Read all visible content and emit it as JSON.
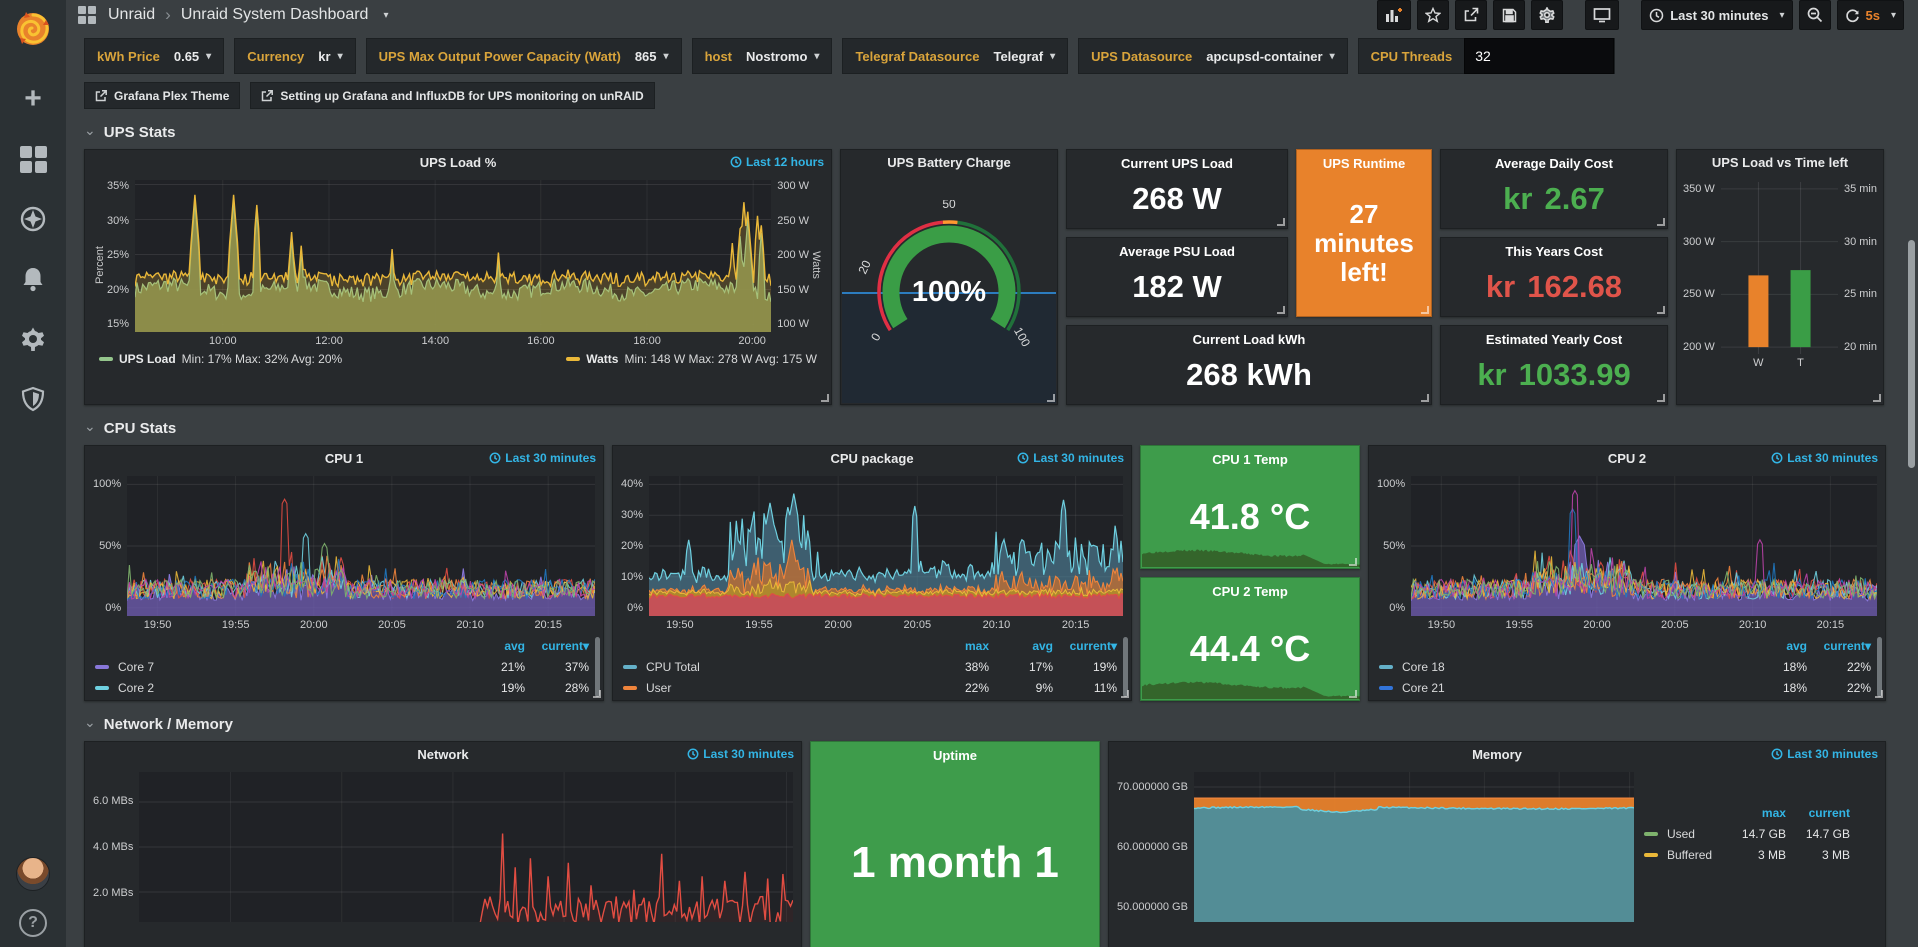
{
  "nav": {
    "breadcrumb": {
      "root": "Unraid",
      "current": "Unraid System Dashboard"
    },
    "time_range": "Last 30 minutes",
    "refresh": "5s"
  },
  "variables": [
    {
      "label": "kWh Price",
      "value": "0.65"
    },
    {
      "label": "Currency",
      "value": "kr"
    },
    {
      "label": "UPS Max Output Power Capacity (Watt)",
      "value": "865"
    },
    {
      "label": "host",
      "value": "Nostromo"
    },
    {
      "label": "Telegraf Datasource",
      "value": "Telegraf"
    },
    {
      "label": "UPS Datasource",
      "value": "apcupsd-container"
    },
    {
      "label": "CPU Threads",
      "value": "32"
    }
  ],
  "links": [
    {
      "text": "Grafana Plex Theme"
    },
    {
      "text": "Setting up Grafana and InfluxDB for UPS monitoring on unRAID"
    }
  ],
  "sections": {
    "ups": "UPS Stats",
    "cpu": "CPU Stats",
    "netmem": "Network / Memory"
  },
  "stats": {
    "current_ups_load": {
      "title": "Current UPS Load",
      "value": "268 W"
    },
    "avg_psu_load": {
      "title": "Average PSU Load",
      "value": "182 W"
    },
    "ups_runtime": {
      "title": "UPS Runtime",
      "value": "27 minutes left!",
      "bg": "#e8822b"
    },
    "current_load_kwh": {
      "title": "Current Load kWh",
      "value": "268 kWh"
    },
    "avg_daily_cost": {
      "title": "Average Daily Cost",
      "prefix": "kr",
      "value": "2.67",
      "color": "#4caf50"
    },
    "this_years_cost": {
      "title": "This Years Cost",
      "prefix": "kr",
      "value": "162.68",
      "color": "#e0544a"
    },
    "est_yearly_cost": {
      "title": "Estimated Yearly Cost",
      "prefix": "kr",
      "value": "1033.99",
      "color": "#4caf50"
    },
    "cpu1_temp": {
      "title": "CPU 1 Temp",
      "value": "41.8 °C",
      "bg": "#3e9c4b"
    },
    "cpu2_temp": {
      "title": "CPU 2 Temp",
      "value": "44.4 °C",
      "bg": "#3e9c4b"
    },
    "uptime": {
      "title": "Uptime",
      "value": "1 month 1",
      "bg": "#3e9c4b"
    }
  },
  "chart_data": [
    {
      "id": "ups_load",
      "type": "line",
      "title": "UPS Load %",
      "time_range": "Last 12 hours",
      "ylabel_left": "Percent",
      "ylabel_right": "Watts",
      "y_ticks_left": [
        "35%",
        "30%",
        "25%",
        "20%",
        "15%"
      ],
      "y_ticks_right": [
        "300 W",
        "250 W",
        "200 W",
        "150 W",
        "100 W"
      ],
      "x_ticks": [
        "10:00",
        "12:00",
        "14:00",
        "16:00",
        "18:00",
        "20:00"
      ],
      "series": [
        {
          "name": "UPS Load",
          "color": "#94c58c",
          "legend": "Min: 17%  Max: 32%  Avg: 20%"
        },
        {
          "name": "Watts",
          "color": "#eab839",
          "legend": "Min: 148 W  Max: 278 W  Avg: 175 W"
        }
      ]
    },
    {
      "id": "ups_battery",
      "type": "gauge",
      "title": "UPS Battery Charge",
      "value": "100%",
      "scale_labels": [
        "0",
        "20",
        "50",
        "100"
      ],
      "colors": {
        "green": "#3a9d46",
        "red": "#e02f44",
        "orange": "#ff9830",
        "threshold_line": "#2c7cbf"
      }
    },
    {
      "id": "ups_bar",
      "type": "bar",
      "title": "UPS Load vs Time left",
      "categories": [
        "W",
        "T"
      ],
      "series": [
        {
          "name": "W",
          "value": 268,
          "unit": "W",
          "color": "#e8822b"
        },
        {
          "name": "T",
          "value": 27.3,
          "unit": "min",
          "color": "#3a9d46"
        }
      ],
      "ylim_left": [
        200,
        350
      ],
      "ylim_right": [
        20,
        35
      ],
      "y_ticks_left": [
        "350 W",
        "300 W",
        "250 W",
        "200 W"
      ],
      "y_ticks_right": [
        "35 min",
        "30 min",
        "25 min",
        "20 min"
      ]
    },
    {
      "id": "cpu1",
      "type": "area",
      "title": "CPU 1",
      "time_range": "Last 30 minutes",
      "y_ticks": [
        "100%",
        "50%",
        "0%"
      ],
      "x_ticks": [
        "19:50",
        "19:55",
        "20:00",
        "20:05",
        "20:10",
        "20:15"
      ],
      "legend": {
        "headers": [
          "avg",
          "current"
        ],
        "rows": [
          {
            "name": "Core 7",
            "color": "#8877d9",
            "values": [
              "21%",
              "37%"
            ]
          },
          {
            "name": "Core 2",
            "color": "#6ed0e0",
            "values": [
              "19%",
              "28%"
            ]
          }
        ]
      }
    },
    {
      "id": "cpu_package",
      "type": "area",
      "title": "CPU package",
      "time_range": "Last 30 minutes",
      "y_ticks": [
        "40%",
        "30%",
        "20%",
        "10%",
        "0%"
      ],
      "x_ticks": [
        "19:50",
        "19:55",
        "20:00",
        "20:05",
        "20:10",
        "20:15"
      ],
      "legend": {
        "headers": [
          "max",
          "avg",
          "current"
        ],
        "rows": [
          {
            "name": "CPU Total",
            "color": "#64b0c8",
            "values": [
              "38%",
              "17%",
              "19%"
            ]
          },
          {
            "name": "User",
            "color": "#ef843c",
            "values": [
              "22%",
              "9%",
              "11%"
            ]
          }
        ]
      }
    },
    {
      "id": "cpu2",
      "type": "area",
      "title": "CPU 2",
      "time_range": "Last 30 minutes",
      "y_ticks": [
        "100%",
        "50%",
        "0%"
      ],
      "x_ticks": [
        "19:50",
        "19:55",
        "20:00",
        "20:05",
        "20:10",
        "20:15"
      ],
      "legend": {
        "headers": [
          "avg",
          "current"
        ],
        "rows": [
          {
            "name": "Core 18",
            "color": "#64b0c8",
            "values": [
              "18%",
              "22%"
            ]
          },
          {
            "name": "Core 21",
            "color": "#3274d9",
            "values": [
              "18%",
              "22%"
            ]
          }
        ]
      }
    },
    {
      "id": "network",
      "type": "line",
      "title": "Network",
      "time_range": "Last 30 minutes",
      "y_ticks": [
        "6.0 MBs",
        "4.0 MBs",
        "2.0 MBs"
      ],
      "series": [
        {
          "name": "network",
          "color": "#e24d42"
        }
      ]
    },
    {
      "id": "memory",
      "type": "area",
      "title": "Memory",
      "time_range": "Last 30 minutes",
      "y_ticks": [
        "70.000000 GB",
        "60.000000 GB",
        "50.000000 GB"
      ],
      "legend": {
        "headers": [
          "max",
          "current"
        ],
        "rows": [
          {
            "name": "Used",
            "color": "#7eb26d",
            "values": [
              "14.7 GB",
              "14.7 GB"
            ]
          },
          {
            "name": "Buffered",
            "color": "#eab839",
            "values": [
              "3 MB",
              "3 MB"
            ]
          }
        ]
      }
    }
  ]
}
